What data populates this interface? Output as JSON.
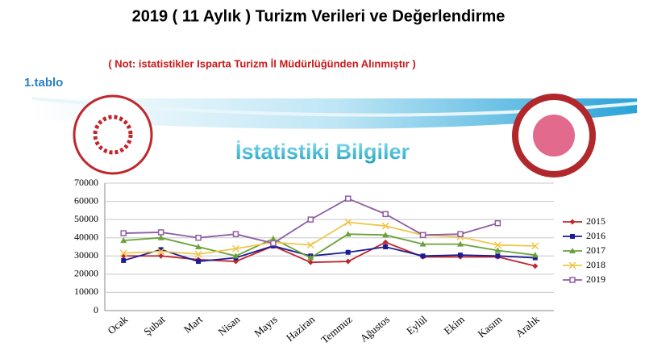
{
  "heading": "2019 ( 11 Aylık ) Turizm Verileri ve Değerlendirme",
  "note": "( Not: istatistikler Isparta Turizm İl Müdürlüğünden Alınmıştır )",
  "table_label": "1.tablo",
  "chart_data": {
    "type": "line",
    "title": "İstatistiki Bilgiler",
    "categories": [
      "Ocak",
      "Şubat",
      "Mart",
      "Nisan",
      "Mayıs",
      "Haziran",
      "Temmuz",
      "Ağustos",
      "Eylül",
      "Ekim",
      "Kasım",
      "Aralık"
    ],
    "series": [
      {
        "name": "2015",
        "color": "#c0272d",
        "marker": "diamond",
        "values": [
          30000,
          30000,
          28000,
          27000,
          35500,
          26500,
          27000,
          37500,
          29500,
          29500,
          29500,
          24500
        ]
      },
      {
        "name": "2016",
        "color": "#1c1c96",
        "marker": "square",
        "values": [
          27500,
          33500,
          27000,
          29000,
          35500,
          30000,
          32000,
          35000,
          30000,
          30500,
          30000,
          29000
        ]
      },
      {
        "name": "2017",
        "color": "#6aa23a",
        "marker": "triangle",
        "values": [
          38500,
          40000,
          35000,
          30000,
          39500,
          29000,
          42000,
          41500,
          36500,
          36500,
          33000,
          30500
        ]
      },
      {
        "name": "2018",
        "color": "#f0c64a",
        "marker": "x",
        "values": [
          31500,
          32500,
          31000,
          34000,
          37500,
          36000,
          48500,
          46500,
          41500,
          40500,
          36000,
          35500
        ]
      },
      {
        "name": "2019",
        "color": "#8e5ea2",
        "marker": "open-square",
        "values": [
          42500,
          43000,
          40000,
          42000,
          37000,
          50000,
          61500,
          53000,
          41500,
          42000,
          48000,
          null
        ]
      }
    ],
    "ylim": [
      0,
      70000
    ],
    "yticks": [
      0,
      10000,
      20000,
      30000,
      40000,
      50000,
      60000,
      70000
    ],
    "grid": true,
    "legend": "right"
  }
}
